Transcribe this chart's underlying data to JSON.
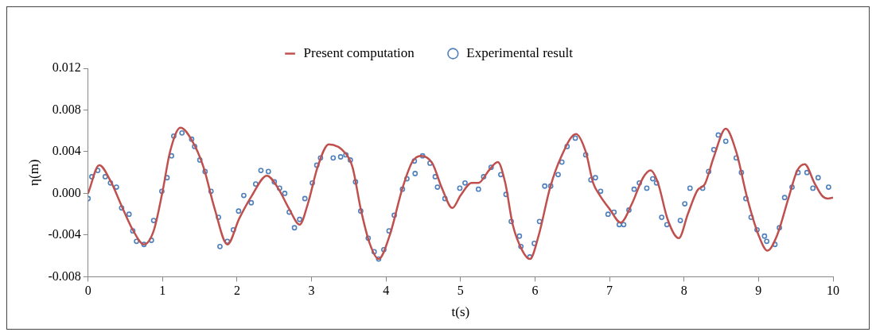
{
  "chart_data": {
    "type": "line",
    "xlabel": "t(s)",
    "ylabel": "η(m)",
    "xlim": [
      0,
      10
    ],
    "xticks": [
      0,
      1,
      2,
      3,
      4,
      5,
      6,
      7,
      8,
      9,
      10
    ],
    "ylim": [
      -0.008,
      0.012
    ],
    "yticks": [
      -0.008,
      -0.004,
      {
        "value": 0,
        "label": "0.000"
      },
      0.004,
      0.008,
      0.012
    ],
    "grid": false,
    "legend": "top",
    "line_style": "solid",
    "series": [
      {
        "name": "Present computation",
        "type": "line",
        "marker": "none",
        "color": "#c0504d",
        "x": [
          0,
          0.15,
          0.3,
          0.45,
          0.6,
          0.75,
          0.88,
          1.0,
          1.1,
          1.24,
          1.4,
          1.55,
          1.7,
          1.87,
          2.03,
          2.2,
          2.4,
          2.55,
          2.7,
          2.84,
          2.95,
          3.08,
          3.23,
          3.46,
          3.55,
          3.66,
          3.78,
          3.9,
          4.05,
          4.22,
          4.35,
          4.47,
          4.62,
          4.75,
          4.89,
          5.0,
          5.15,
          5.24,
          5.38,
          5.5,
          5.6,
          5.7,
          5.83,
          5.93,
          6.05,
          6.2,
          6.35,
          6.55,
          6.68,
          6.78,
          6.87,
          7.0,
          7.15,
          7.3,
          7.45,
          7.55,
          7.65,
          7.78,
          7.93,
          8.05,
          8.18,
          8.28,
          8.4,
          8.56,
          8.7,
          8.85,
          9.0,
          9.12,
          9.25,
          9.4,
          9.52,
          9.62,
          9.75,
          9.85,
          9.93,
          10
        ],
        "values": [
          0,
          0.0027,
          0.0012,
          -0.0012,
          -0.0035,
          -0.0049,
          -0.0036,
          0.0002,
          0.004,
          0.0063,
          0.005,
          0.0025,
          -0.0015,
          -0.0049,
          -0.0024,
          -0.0002,
          0.0017,
          0.0005,
          -0.0015,
          -0.003,
          -0.001,
          0.0025,
          0.0047,
          0.0038,
          0.0025,
          -0.0015,
          -0.0048,
          -0.0063,
          -0.004,
          0.0005,
          0.003,
          0.0036,
          0.0029,
          0.0005,
          -0.0014,
          -0.0002,
          0.001,
          0.001,
          0.0022,
          0.003,
          0.001,
          -0.003,
          -0.0055,
          -0.0063,
          -0.004,
          0.0005,
          0.0035,
          0.0057,
          0.004,
          0.001,
          -0.0002,
          -0.0015,
          -0.0028,
          -0.001,
          0.0015,
          0.0022,
          0.001,
          -0.0025,
          -0.0043,
          -0.002,
          0.0003,
          0.0009,
          0.0035,
          0.0062,
          0.004,
          -0.0005,
          -0.004,
          -0.0055,
          -0.004,
          -0.0005,
          0.0022,
          0.0028,
          0.001,
          -0.0002,
          -0.0005,
          -0.0004
        ]
      },
      {
        "name": "Experimental result",
        "type": "scatter",
        "marker": "circle",
        "color": "#4f81bd",
        "x": [
          0,
          0.05,
          0.13,
          0.23,
          0.3,
          0.38,
          0.45,
          0.55,
          0.6,
          0.65,
          0.75,
          0.85,
          0.88,
          0.99,
          1.06,
          1.12,
          1.15,
          1.26,
          1.39,
          1.43,
          1.5,
          1.57,
          1.65,
          1.75,
          1.77,
          1.87,
          1.95,
          2.02,
          2.09,
          2.19,
          2.25,
          2.32,
          2.42,
          2.5,
          2.57,
          2.64,
          2.7,
          2.77,
          2.84,
          2.91,
          3.01,
          3.07,
          3.12,
          3.29,
          3.39,
          3.46,
          3.52,
          3.59,
          3.66,
          3.76,
          3.84,
          3.9,
          3.97,
          4.04,
          4.11,
          4.22,
          4.28,
          4.38,
          4.39,
          4.49,
          4.59,
          4.66,
          4.69,
          4.79,
          4.99,
          5.06,
          5.24,
          5.31,
          5.41,
          5.54,
          5.61,
          5.68,
          5.79,
          5.81,
          5.93,
          5.99,
          6.06,
          6.13,
          6.21,
          6.31,
          6.36,
          6.43,
          6.54,
          6.68,
          6.75,
          6.81,
          6.88,
          6.98,
          7.06,
          7.13,
          7.19,
          7.26,
          7.33,
          7.4,
          7.5,
          7.58,
          7.63,
          7.7,
          7.77,
          7.95,
          8.01,
          8.08,
          8.25,
          8.33,
          8.4,
          8.46,
          8.56,
          8.7,
          8.77,
          8.83,
          8.9,
          8.98,
          9.08,
          9.11,
          9.22,
          9.28,
          9.35,
          9.45,
          9.53,
          9.65,
          9.73,
          9.8,
          9.94
        ],
        "values": [
          -0.0005,
          0.0016,
          0.0022,
          0.0016,
          0.001,
          0.0006,
          -0.0014,
          -0.002,
          -0.0036,
          -0.0046,
          -0.0049,
          -0.0045,
          -0.0026,
          0.0002,
          0.0015,
          0.0036,
          0.0055,
          0.0058,
          0.0052,
          0.0045,
          0.0032,
          0.0021,
          0.0002,
          -0.0023,
          -0.0051,
          -0.0046,
          -0.0035,
          -0.0017,
          -0.0002,
          -0.0009,
          0.0009,
          0.0022,
          0.0021,
          0.0011,
          0.0005,
          0,
          -0.0018,
          -0.0033,
          -0.0025,
          -0.0005,
          0.001,
          0.0027,
          0.0034,
          0.0034,
          0.0035,
          0.0037,
          0.0032,
          0.0011,
          -0.0017,
          -0.0043,
          -0.0056,
          -0.0063,
          -0.0054,
          -0.0036,
          -0.0021,
          0.0004,
          0.0014,
          0.0031,
          0.0019,
          0.0036,
          0.0029,
          0.0016,
          0.0006,
          -0.0005,
          0.0005,
          0.001,
          0.0004,
          0.0016,
          0.0025,
          0.0018,
          -0.0001,
          -0.0027,
          -0.0041,
          -0.0051,
          -0.0061,
          -0.0048,
          -0.0027,
          0.0007,
          0.0007,
          0.0018,
          0.003,
          0.0045,
          0.0053,
          0.0037,
          0.0013,
          0.0015,
          0.0002,
          -0.002,
          -0.0018,
          -0.003,
          -0.003,
          -0.0016,
          0.0004,
          0.001,
          0.0005,
          0.0014,
          0.001,
          -0.0023,
          -0.003,
          -0.0026,
          -0.001,
          0.0005,
          0.0005,
          0.0021,
          0.0042,
          0.0056,
          0.005,
          0.0034,
          0.002,
          -0.0005,
          -0.0023,
          -0.0035,
          -0.0041,
          -0.0046,
          -0.0049,
          -0.0033,
          -0.0004,
          0.0006,
          0.002,
          0.002,
          0.0005,
          0.0015,
          0.0006
        ]
      }
    ]
  }
}
